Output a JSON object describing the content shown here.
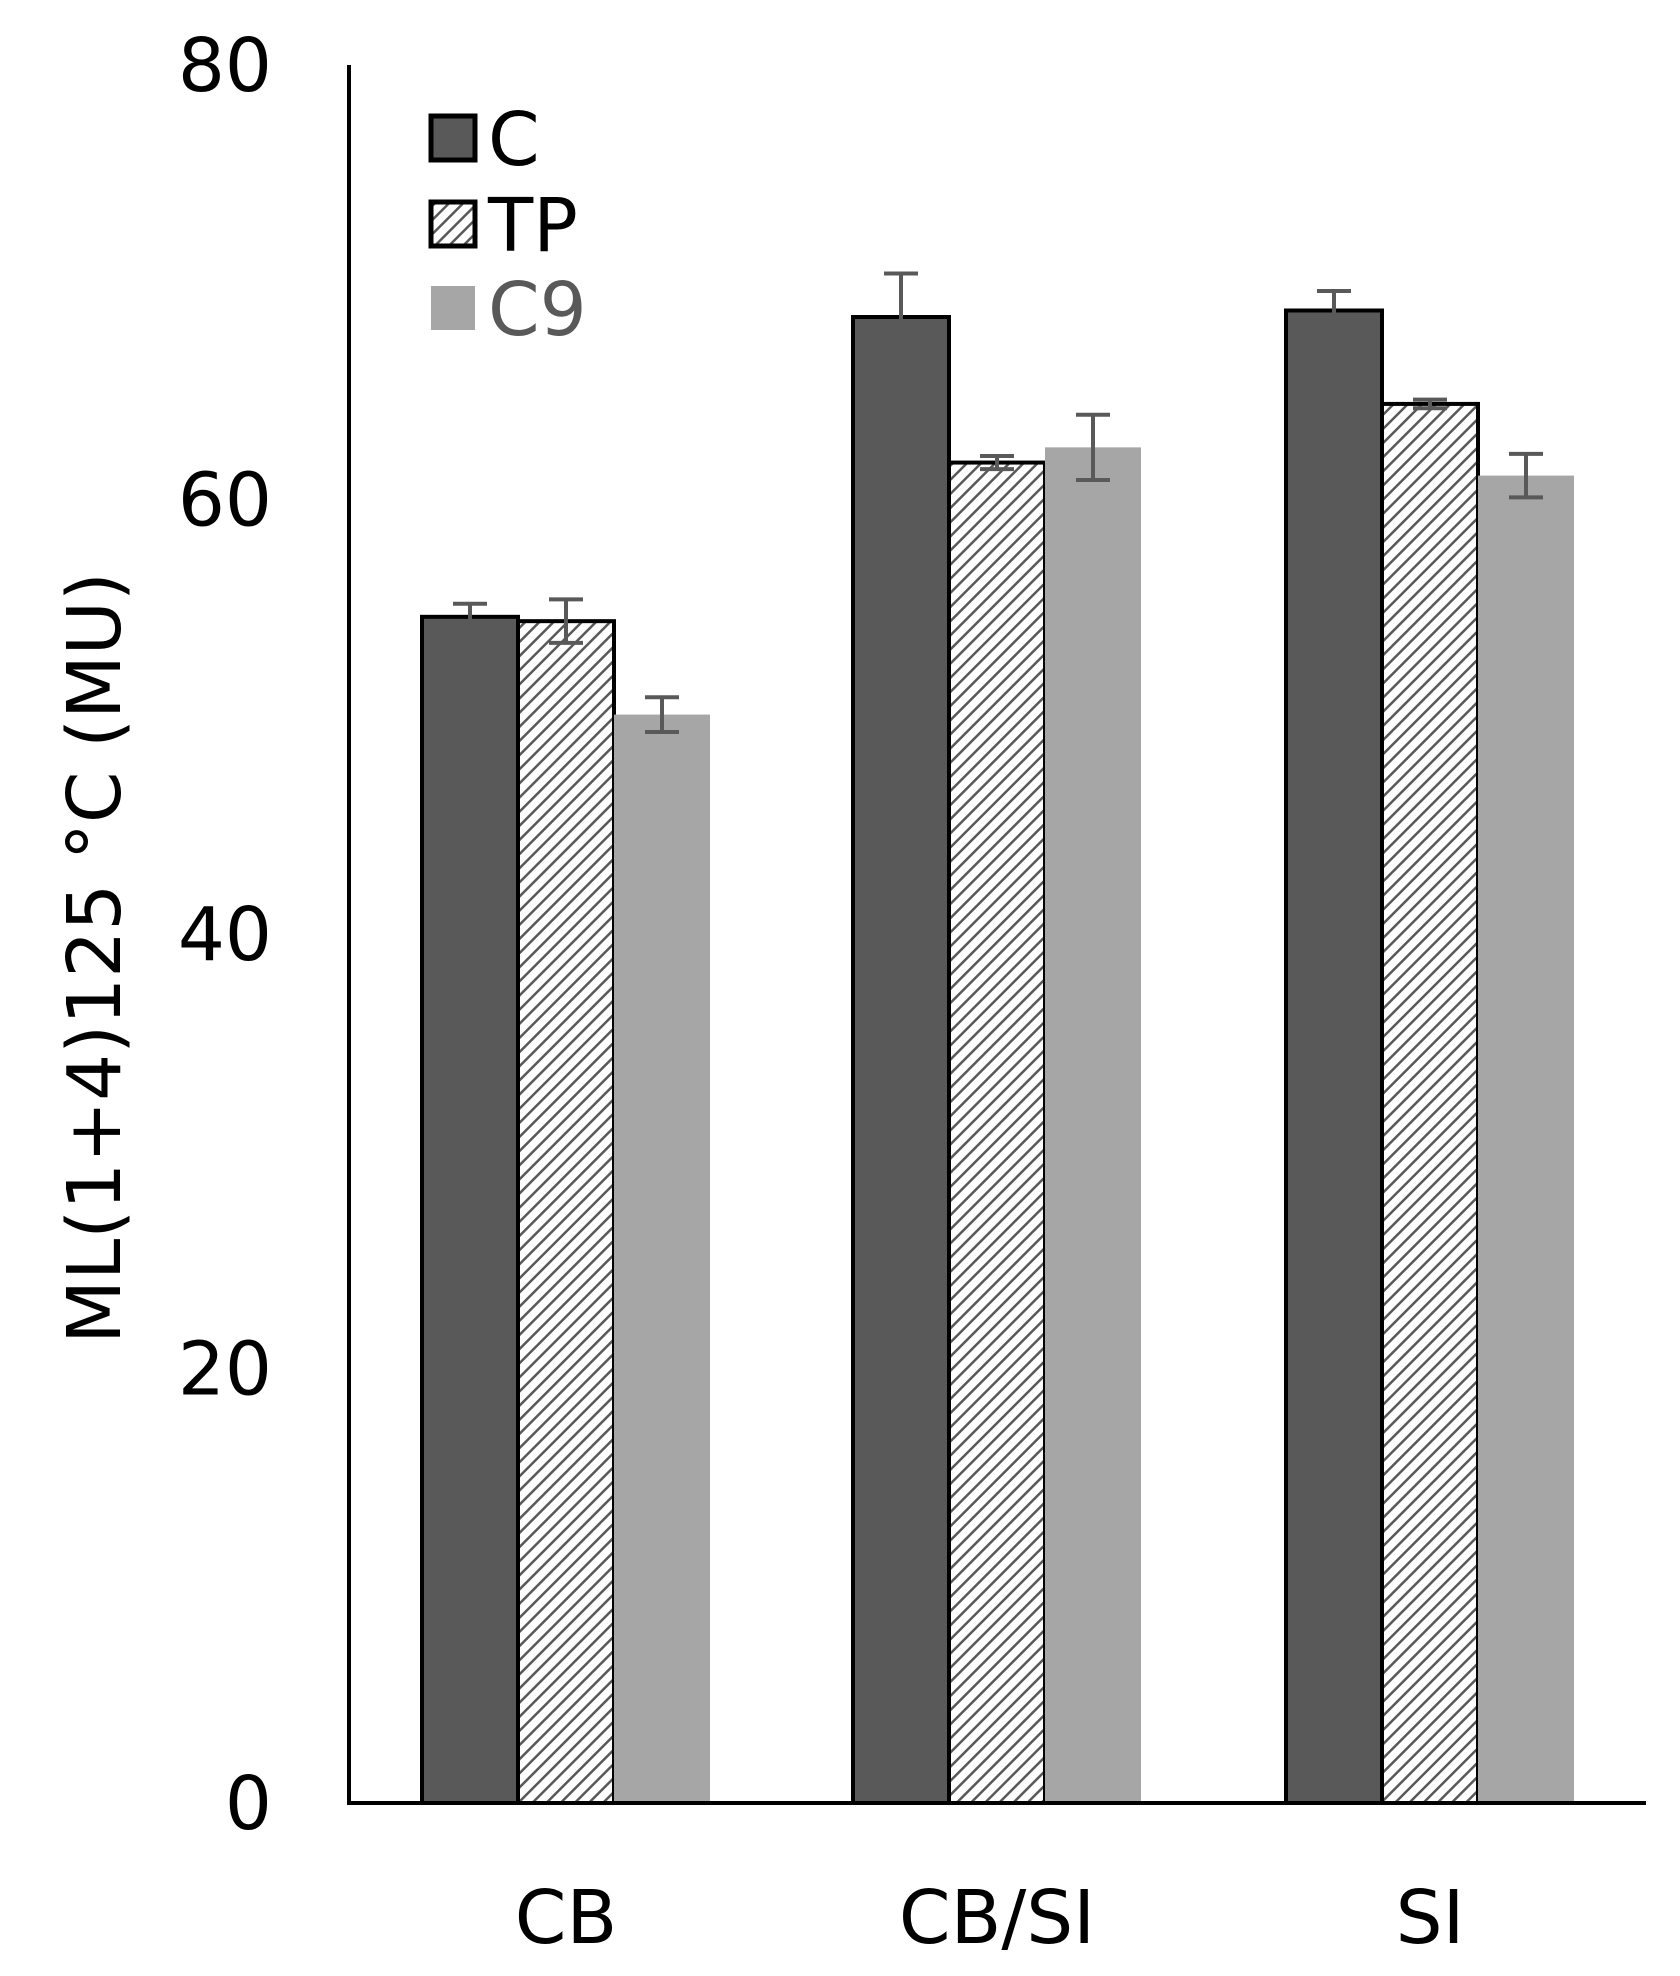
{
  "chart_data": {
    "type": "bar",
    "title": "",
    "xlabel": "",
    "ylabel": "ML(1+4)125 °C (MU)",
    "ylim": [
      0,
      80
    ],
    "yticks": [
      0,
      20,
      40,
      60,
      80
    ],
    "grid": false,
    "legend_position": "top-left",
    "categories": [
      "CB",
      "CB/SI",
      "SI"
    ],
    "series": [
      {
        "name": "C",
        "values": [
          54.6,
          68.4,
          68.7
        ],
        "errors": [
          0.6,
          2.0,
          0.9
        ],
        "style": "solid",
        "color": "#595959",
        "stroke": "#000000",
        "legend_text_color": "#000000"
      },
      {
        "name": "TP",
        "values": [
          54.4,
          61.7,
          64.4
        ],
        "errors": [
          1.0,
          0.3,
          0.2
        ],
        "style": "hatch",
        "color": "#ffffff",
        "stroke": "#000000",
        "legend_text_color": "#000000"
      },
      {
        "name": "C9",
        "values": [
          50.1,
          62.4,
          61.1
        ],
        "errors": [
          0.8,
          1.5,
          1.0
        ],
        "style": "solid",
        "color": "#a6a6a6",
        "stroke": "none",
        "legend_text_color": "#595959"
      }
    ],
    "error_bar_color": "#595959"
  }
}
